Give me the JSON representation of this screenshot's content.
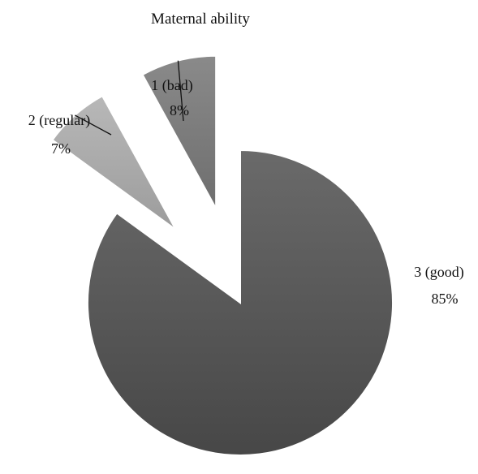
{
  "chart_data": {
    "type": "pie",
    "title": "Maternal ability",
    "slices": [
      {
        "name": "1 (bad)",
        "value": 8,
        "value_label": "8%",
        "color": "#7a7a7a",
        "exploded": true
      },
      {
        "name": "2 (regular)",
        "value": 7,
        "value_label": "7%",
        "color": "#a9a9a9",
        "exploded": true
      },
      {
        "name": "3 (good)",
        "value": 85,
        "value_label": "85%",
        "color": "#575757",
        "exploded": false
      }
    ],
    "legend": "none"
  }
}
